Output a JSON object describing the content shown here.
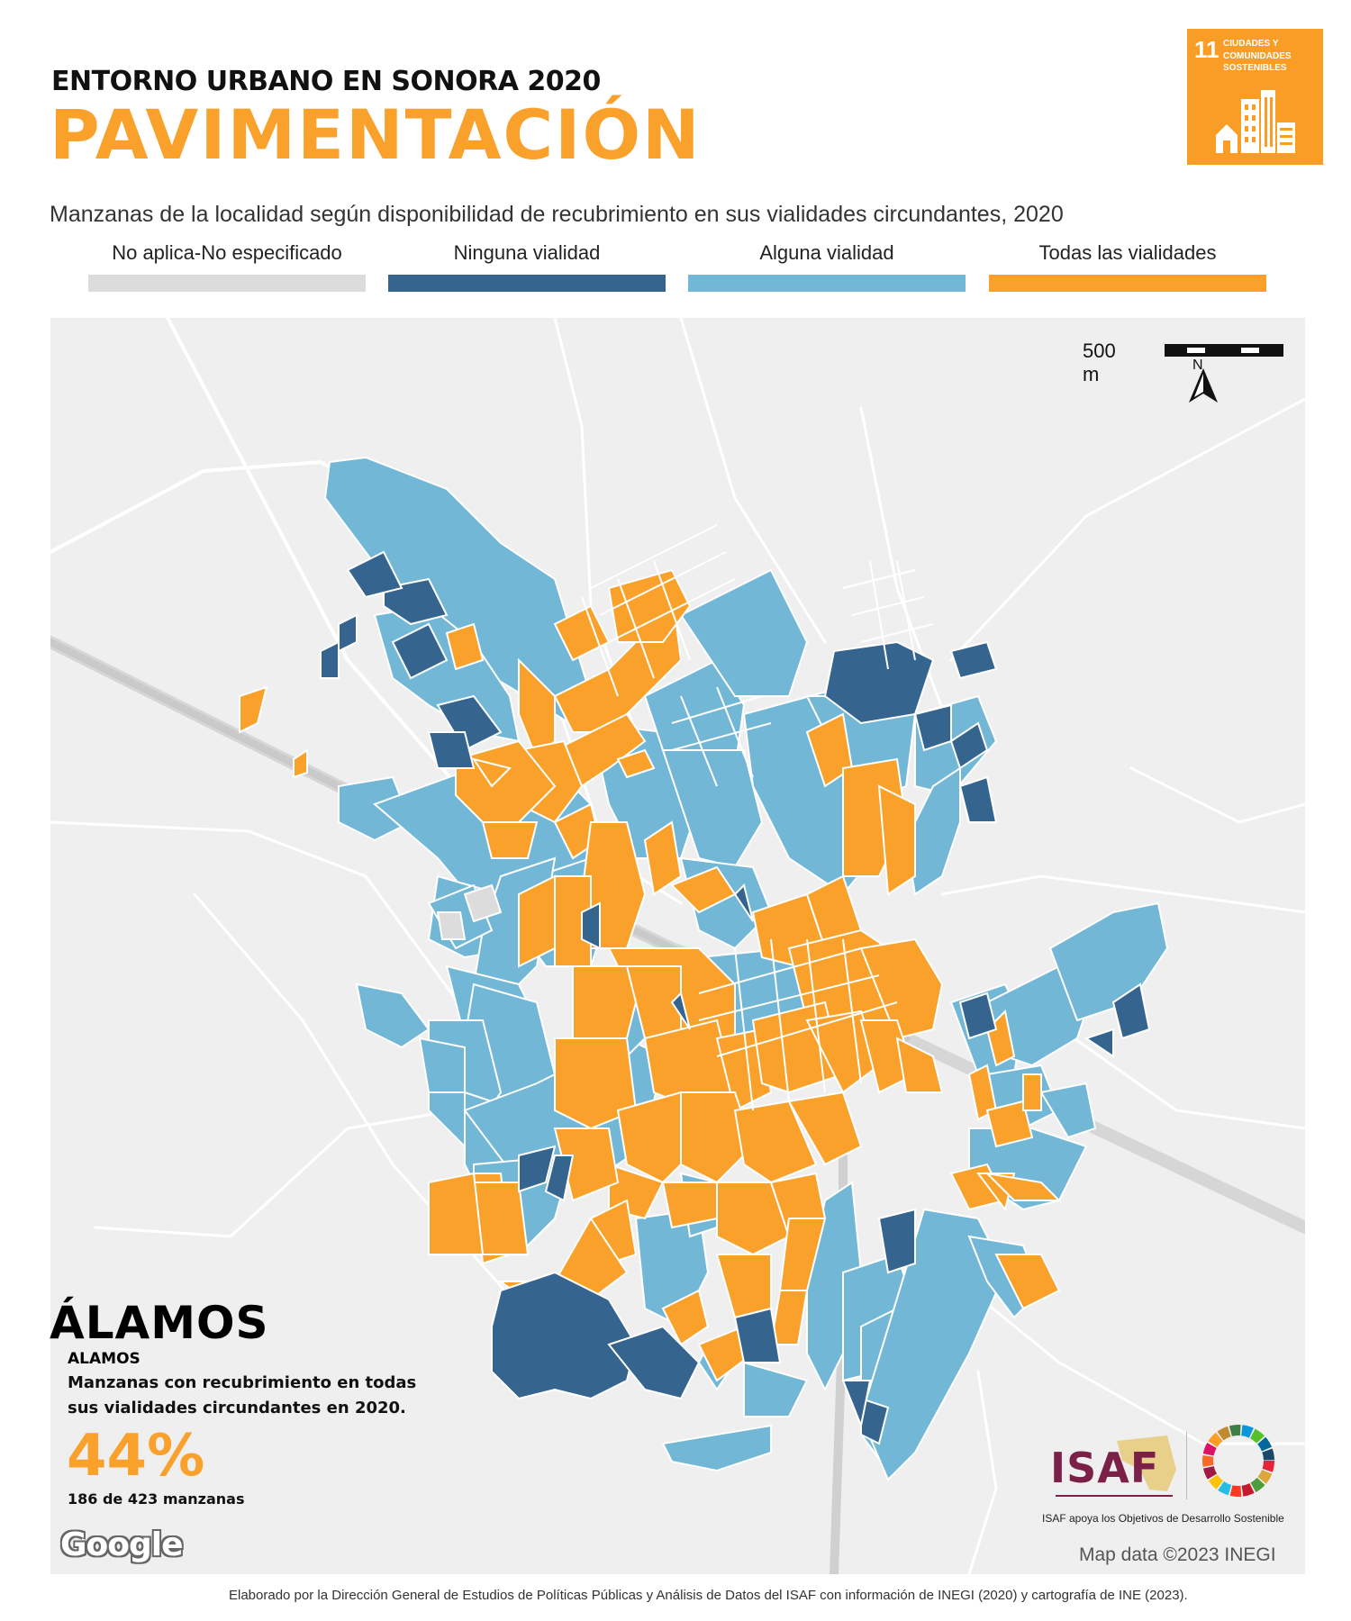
{
  "header": {
    "kicker": "ENTORNO URBANO EN SONORA 2020",
    "title": "PAVIMENTACIÓN",
    "subtitle": "Manzanas de la localidad según disponibilidad de recubrimiento en sus vialidades circundantes, 2020"
  },
  "sdg_badge": {
    "number": "11",
    "label": "CIUDADES Y COMUNIDADES SOSTENIBLES",
    "color": "#f99d26"
  },
  "legend": [
    {
      "label": "No aplica-No especificado",
      "color": "#dcdcdc"
    },
    {
      "label": "Ninguna vialidad",
      "color": "#35648f"
    },
    {
      "label": "Alguna vialidad",
      "color": "#72b8d6"
    },
    {
      "label": "Todas las vialidades",
      "color": "#f9a12a"
    }
  ],
  "map": {
    "scale_label": "500 m",
    "north_label": "N",
    "google_label": "Google",
    "attribution": "Map data ©2023 INEGI"
  },
  "city": {
    "name": "ÁLAMOS",
    "subname": "ALAMOS",
    "description": "Manzanas con recubrimiento en todas sus vialidades circundantes en 2020.",
    "percent": "44%",
    "count": "186 de 423 manzanas"
  },
  "logos": {
    "isaf": "ISAF",
    "isaf_tagline": "ISAF apoya los Objetivos de Desarrollo Sostenible"
  },
  "footer": "Elaborado por la Dirección General de Estudios de Políticas Públicas y Análisis de Datos del ISAF con información de INEGI (2020) y cartografía de INE (2023)."
}
